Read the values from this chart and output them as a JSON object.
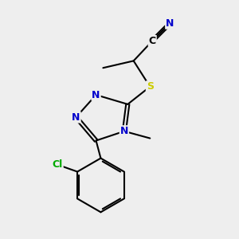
{
  "background_color": "#eeeeee",
  "atom_colors": {
    "C": "#000000",
    "N": "#0000cc",
    "S": "#cccc00",
    "Cl": "#00aa00"
  },
  "bond_color": "#000000",
  "bond_width": 1.5,
  "font_size_atom": 9
}
